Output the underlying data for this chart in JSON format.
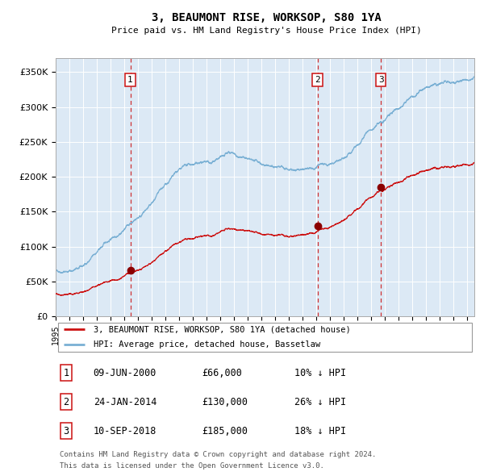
{
  "title": "3, BEAUMONT RISE, WORKSOP, S80 1YA",
  "subtitle": "Price paid vs. HM Land Registry's House Price Index (HPI)",
  "background_color": "#dce9f5",
  "plot_bg_color": "#dce9f5",
  "hpi_color": "#7ab0d4",
  "price_color": "#cc1111",
  "marker_color": "#8b0000",
  "vline_color": "#cc1111",
  "grid_color": "#c8d8e8",
  "yticks": [
    0,
    50000,
    100000,
    150000,
    200000,
    250000,
    300000,
    350000
  ],
  "ytick_labels": [
    "£0",
    "£50K",
    "£100K",
    "£150K",
    "£200K",
    "£250K",
    "£300K",
    "£350K"
  ],
  "xlim_start": 1995.0,
  "xlim_end": 2025.5,
  "ylim_min": 0,
  "ylim_max": 370000,
  "transactions": [
    {
      "label": "1",
      "date_float": 2000.44,
      "price": 66000,
      "date_str": "09-JUN-2000",
      "pct": "10% ↓ HPI"
    },
    {
      "label": "2",
      "date_float": 2014.07,
      "price": 130000,
      "date_str": "24-JAN-2014",
      "pct": "26% ↓ HPI"
    },
    {
      "label": "3",
      "date_float": 2018.69,
      "price": 185000,
      "date_str": "10-SEP-2018",
      "pct": "18% ↓ HPI"
    }
  ],
  "legend_line1": "3, BEAUMONT RISE, WORKSOP, S80 1YA (detached house)",
  "legend_line2": "HPI: Average price, detached house, Bassetlaw",
  "footer1": "Contains HM Land Registry data © Crown copyright and database right 2024.",
  "footer2": "This data is licensed under the Open Government Licence v3.0.",
  "table_rows": [
    {
      "label": "1",
      "date": "09-JUN-2000",
      "price": "£66,000",
      "pct": "10% ↓ HPI"
    },
    {
      "label": "2",
      "date": "24-JAN-2014",
      "price": "£130,000",
      "pct": "26% ↓ HPI"
    },
    {
      "label": "3",
      "date": "10-SEP-2018",
      "price": "£185,000",
      "pct": "18% ↓ HPI"
    }
  ]
}
